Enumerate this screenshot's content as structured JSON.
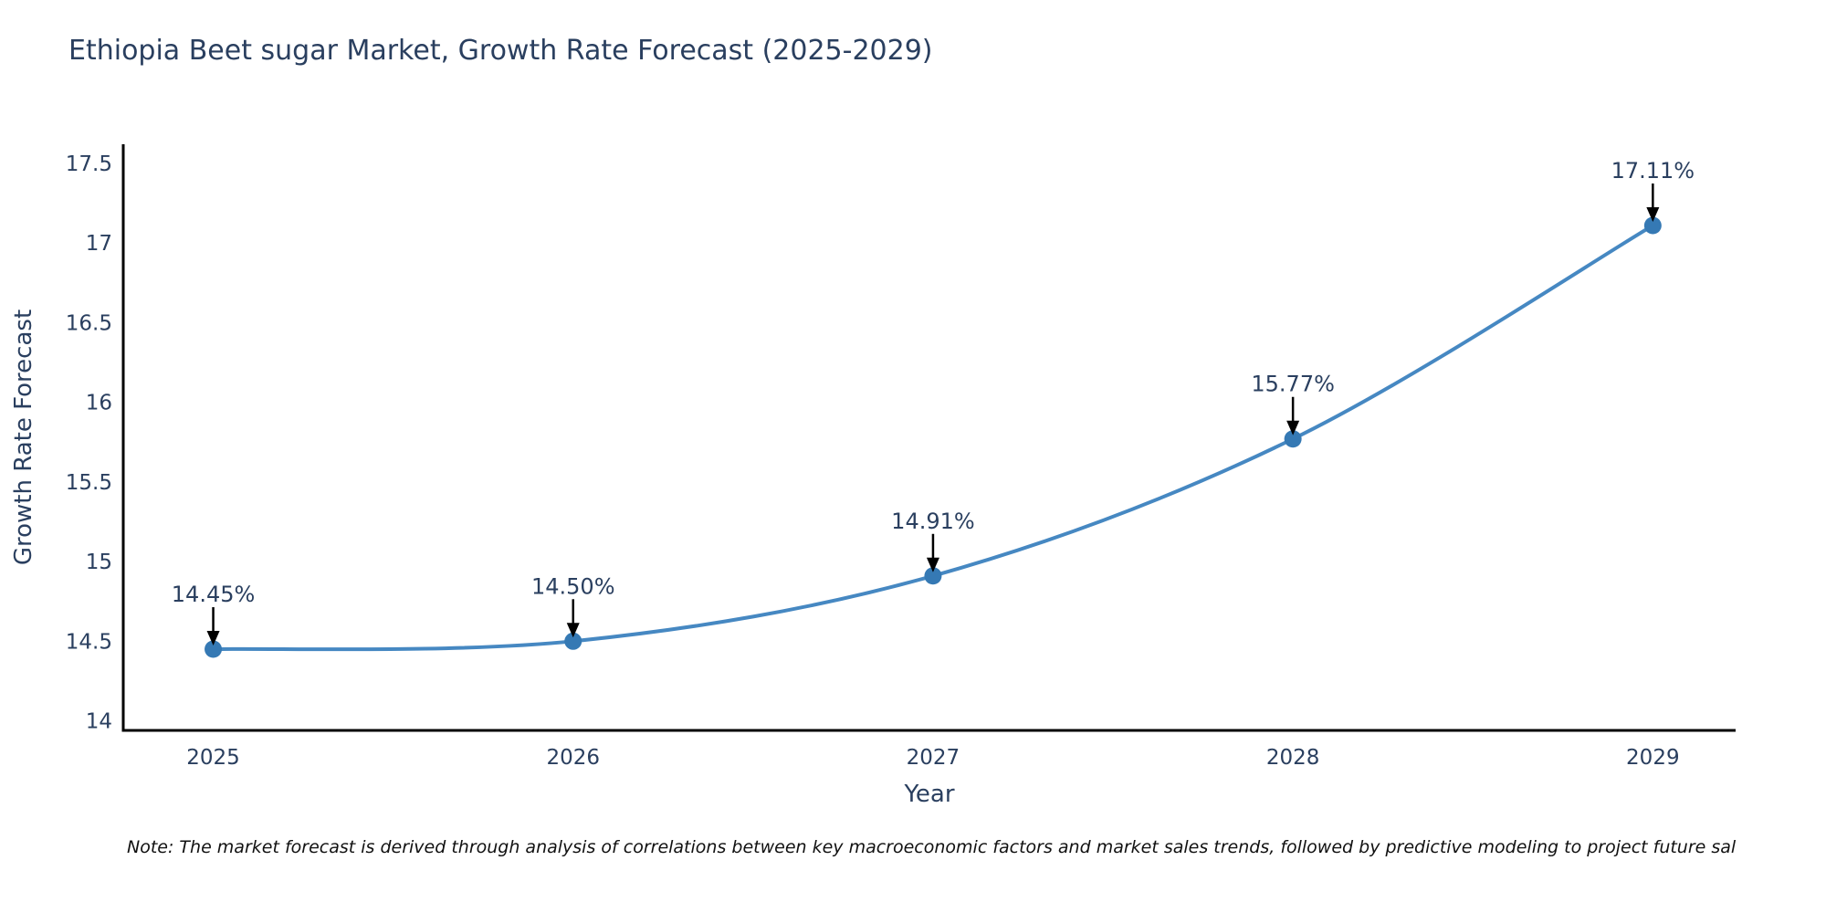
{
  "page": {
    "background": "#ffffff"
  },
  "header": {
    "title": "Ethiopia Beet sugar Market, Growth Rate Forecast (2025-2029)"
  },
  "footnote": {
    "text": "Note: The market forecast is derived through analysis of correlations between key macroeconomic factors and market sales trends, followed by predictive modeling to project future sal"
  },
  "chart_data": {
    "type": "line",
    "title": "Ethiopia Beet sugar Market, Growth Rate Forecast (2025-2029)",
    "x": [
      2025,
      2026,
      2027,
      2028,
      2029
    ],
    "xticklabels": [
      "2025",
      "2026",
      "2027",
      "2028",
      "2029"
    ],
    "series": [
      {
        "name": "Growth Rate Forecast",
        "values": [
          14.45,
          14.5,
          14.91,
          15.77,
          17.11
        ],
        "point_labels": [
          "14.45%",
          "14.50%",
          "14.91%",
          "15.77%",
          "17.11%"
        ]
      }
    ],
    "xlabel": "Year",
    "ylabel": "Growth Rate Forecast",
    "xlim": [
      2024.75,
      2029.23
    ],
    "ylim": [
      13.94,
      17.62
    ],
    "yticks": [
      14,
      14.5,
      15,
      15.5,
      16,
      16.5,
      17,
      17.5
    ],
    "grid": false,
    "legend": "none",
    "line_shape": "spline",
    "annotation_arrows": true,
    "colors": {
      "line": "#4688c2",
      "marker": "#3579b4",
      "axis": "#000000",
      "text": "#2a3f5f",
      "arrow": "#000000",
      "note": "#111111"
    }
  }
}
